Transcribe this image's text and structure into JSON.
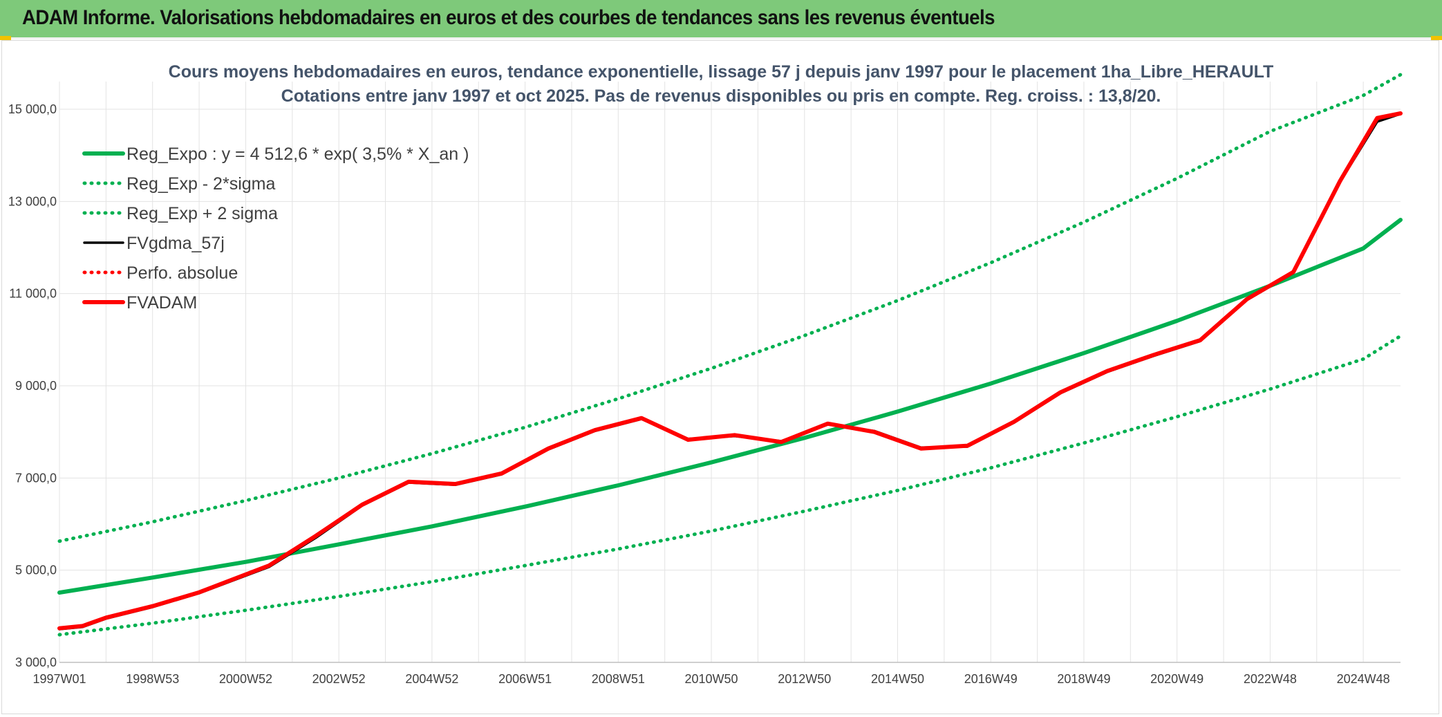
{
  "banner": {
    "title": "ADAM Informe. Valorisations hebdomadaires en euros et des courbes de tendances sans les revenus éventuels"
  },
  "colors": {
    "banner": "#7ec97a",
    "trend": "#00b050",
    "fv_adam": "#ff0000",
    "fv_gdma": "#000000",
    "perf": "#ff0000",
    "grid": "#e3e3e3"
  },
  "chart_data": {
    "type": "line",
    "title": [
      "Cours moyens hebdomadaires en euros, tendance exponentielle, lissage 57 j depuis janv 1997 pour le placement 1ha_Libre_HERAULT",
      "Cotations entre janv 1997 et oct 2025. Pas de revenus disponibles ou pris en compte. Reg. croiss. : 13,8/20."
    ],
    "xlabel": "",
    "ylabel": "",
    "x_range": [
      1997.0,
      2025.8
    ],
    "ylim": [
      3000,
      15600
    ],
    "y_ticks": [
      {
        "value": 3000,
        "label": "3 000,0"
      },
      {
        "value": 5000,
        "label": "5 000,0"
      },
      {
        "value": 7000,
        "label": "7 000,0"
      },
      {
        "value": 9000,
        "label": "9 000,0"
      },
      {
        "value": 11000,
        "label": "11 000,0"
      },
      {
        "value": 13000,
        "label": "13 000,0"
      },
      {
        "value": 15000,
        "label": "15 000,0"
      }
    ],
    "x_ticks": [
      {
        "x": 1997.0,
        "label": "1997W01"
      },
      {
        "x": 1999.0,
        "label": "1998W53"
      },
      {
        "x": 2001.0,
        "label": "2000W52"
      },
      {
        "x": 2003.0,
        "label": "2002W52"
      },
      {
        "x": 2005.0,
        "label": "2004W52"
      },
      {
        "x": 2007.0,
        "label": "2006W51"
      },
      {
        "x": 2009.0,
        "label": "2008W51"
      },
      {
        "x": 2011.0,
        "label": "2010W50"
      },
      {
        "x": 2013.0,
        "label": "2012W50"
      },
      {
        "x": 2015.0,
        "label": "2014W50"
      },
      {
        "x": 2017.0,
        "label": "2016W49"
      },
      {
        "x": 2019.0,
        "label": "2018W49"
      },
      {
        "x": 2021.0,
        "label": "2020W49"
      },
      {
        "x": 2023.0,
        "label": "2022W48"
      },
      {
        "x": 2025.0,
        "label": "2024W48"
      }
    ],
    "legend_position": "top-left",
    "series": [
      {
        "name": "Reg_Expo : y = 4 512,6 * exp( 3,5% *  X_an )",
        "style": "solid",
        "color": "#00b050",
        "x": [
          1997.0,
          1999.0,
          2001.0,
          2003.0,
          2005.0,
          2007.0,
          2009.0,
          2011.0,
          2013.0,
          2015.0,
          2017.0,
          2019.0,
          2021.0,
          2023.0,
          2025.0,
          2025.8
        ],
        "values": [
          4513,
          4840,
          5180,
          5560,
          5950,
          6380,
          6840,
          7340,
          7870,
          8440,
          9050,
          9710,
          10410,
          11170,
          11980,
          12600
        ]
      },
      {
        "name": "Reg_Exp - 2*sigma",
        "style": "dotted",
        "color": "#00b050",
        "x": [
          1997.0,
          1999.0,
          2001.0,
          2003.0,
          2005.0,
          2007.0,
          2009.0,
          2011.0,
          2013.0,
          2015.0,
          2017.0,
          2019.0,
          2021.0,
          2023.0,
          2025.0,
          2025.8
        ],
        "values": [
          3600,
          3850,
          4130,
          4430,
          4750,
          5100,
          5460,
          5850,
          6280,
          6730,
          7220,
          7760,
          8330,
          8930,
          9580,
          10080
        ]
      },
      {
        "name": "Reg_Exp + 2 sigma",
        "style": "dotted",
        "color": "#00b050",
        "x": [
          1997.0,
          1999.0,
          2001.0,
          2003.0,
          2005.0,
          2007.0,
          2009.0,
          2011.0,
          2013.0,
          2015.0,
          2017.0,
          2019.0,
          2021.0,
          2023.0,
          2025.0,
          2025.8
        ],
        "values": [
          5630,
          6050,
          6510,
          7000,
          7530,
          8100,
          8720,
          9380,
          10090,
          10850,
          11670,
          12550,
          13500,
          14520,
          15300,
          15750
        ]
      },
      {
        "name": "FVgdma_57j",
        "style": "solid",
        "color": "#000000",
        "x": [
          1997.0,
          1997.5,
          1998.0,
          1999.0,
          2000.0,
          2001.5,
          2002.5,
          2003.5,
          2004.5,
          2005.5,
          2006.5,
          2007.5,
          2008.5,
          2009.5,
          2010.5,
          2011.5,
          2012.5,
          2013.5,
          2014.5,
          2015.5,
          2016.5,
          2017.5,
          2018.5,
          2019.5,
          2020.5,
          2021.5,
          2022.5,
          2023.5,
          2024.5,
          2025.3,
          2025.8
        ],
        "values": [
          3720,
          3770,
          3950,
          4200,
          4500,
          5070,
          5700,
          6400,
          6900,
          6850,
          7080,
          7620,
          8020,
          8280,
          7850,
          7910,
          7800,
          8160,
          8020,
          7660,
          7680,
          8200,
          8840,
          9300,
          9650,
          9970,
          10860,
          11450,
          13420,
          14730,
          14900
        ]
      },
      {
        "name": "Perfo. absolue",
        "style": "dotted",
        "color": "#ff0000",
        "x": [],
        "values": []
      },
      {
        "name": "FVADAM",
        "style": "solid",
        "color": "#ff0000",
        "x": [
          1997.0,
          1997.5,
          1998.0,
          1999.0,
          2000.0,
          2001.5,
          2002.5,
          2003.5,
          2004.5,
          2005.5,
          2006.5,
          2007.5,
          2008.5,
          2009.5,
          2010.5,
          2011.5,
          2012.5,
          2013.5,
          2014.5,
          2015.5,
          2016.5,
          2017.5,
          2018.5,
          2019.5,
          2020.5,
          2021.5,
          2022.5,
          2023.5,
          2024.5,
          2025.3,
          2025.8
        ],
        "values": [
          3740,
          3790,
          3970,
          4220,
          4520,
          5100,
          5740,
          6420,
          6920,
          6870,
          7100,
          7640,
          8040,
          8300,
          7830,
          7930,
          7780,
          8180,
          8000,
          7640,
          7700,
          8220,
          8860,
          9320,
          9670,
          9990,
          10880,
          11470,
          13440,
          14810,
          14910
        ]
      }
    ]
  }
}
